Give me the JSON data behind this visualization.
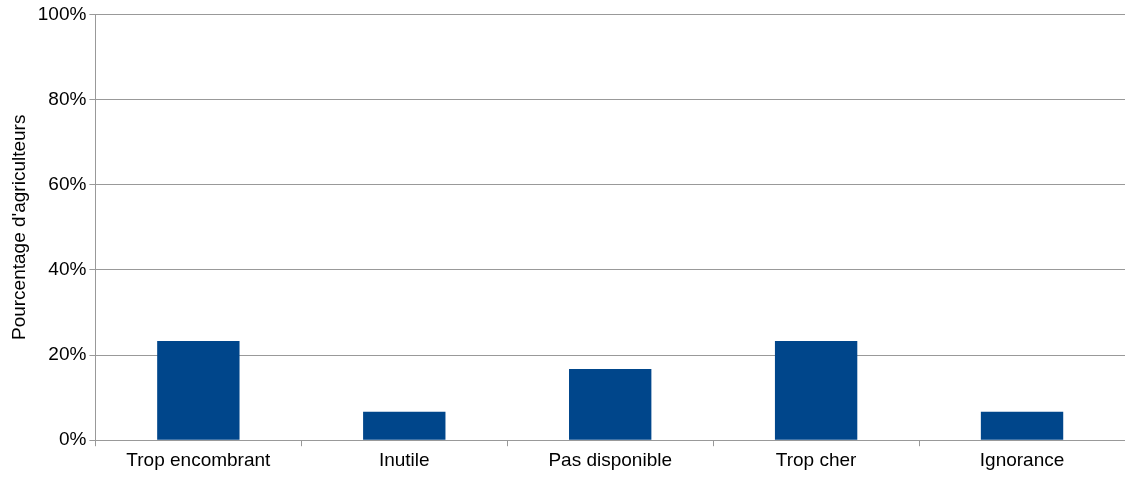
{
  "chart_data": {
    "type": "bar",
    "ylabel": "Pourcentage d'agriculteurs",
    "categories": [
      "Trop encombrant",
      "Inutile",
      "Pas disponible",
      "Trop cher",
      "Ignorance"
    ],
    "values": [
      23.3,
      6.7,
      16.7,
      23.3,
      6.7
    ],
    "color": "#00468b",
    "ylim": [
      0,
      100
    ],
    "yticks": [
      {
        "value": 0,
        "label": "0%"
      },
      {
        "value": 20,
        "label": "20%"
      },
      {
        "value": 40,
        "label": "40%"
      },
      {
        "value": 60,
        "label": "60%"
      },
      {
        "value": 80,
        "label": "80%"
      },
      {
        "value": 100,
        "label": "100%"
      }
    ],
    "grid": "y",
    "legend": false
  }
}
